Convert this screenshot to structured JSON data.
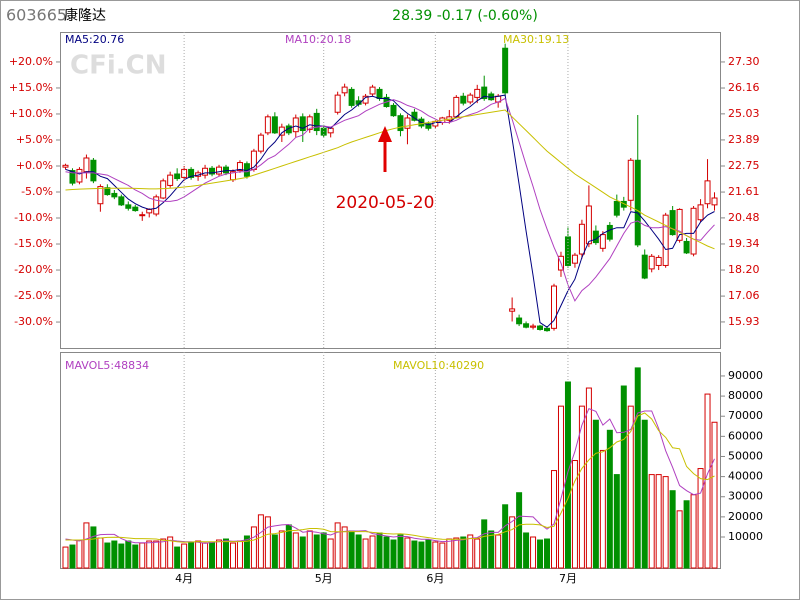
{
  "header": {
    "code": "603665",
    "name": "康隆达",
    "quote": "28.39 -0.17 (-0.60%)"
  },
  "watermark": "CFi.CN",
  "chart_data": [
    {
      "type": "candlestick",
      "annotation": "2020-05-20",
      "up_color": "#d40000",
      "down_color": "#009000",
      "ylim": [
        14.79,
        28.61
      ],
      "yticks": [
        {
          "value": 27.3,
          "label": "+20.0%"
        },
        {
          "value": 26.1625,
          "label": "+15.0%"
        },
        {
          "value": 25.025,
          "label": "+10.0%"
        },
        {
          "value": 23.8875,
          "label": "+5.0%"
        },
        {
          "value": 22.75,
          "label": "+0.0%"
        },
        {
          "value": 21.6125,
          "label": "-5.0%"
        },
        {
          "value": 20.475,
          "label": "-10.0%"
        },
        {
          "value": 19.3375,
          "label": "-15.0%"
        },
        {
          "value": 18.2,
          "label": "-20.0%"
        },
        {
          "value": 17.0625,
          "label": "-25.0%"
        },
        {
          "value": 15.925,
          "label": "-30.0%"
        }
      ],
      "y2lim": [
        14.79,
        28.61
      ],
      "y2ticks": [
        {
          "value": 27.3,
          "label": "27.30"
        },
        26.16,
        25.03,
        23.89,
        22.75,
        21.61,
        20.48,
        19.34,
        {
          "value": 18.2,
          "label": "18.20"
        },
        17.06,
        15.93
      ],
      "open": [
        22.7,
        22.55,
        22.05,
        22.5,
        23.0,
        21.1,
        21.8,
        21.55,
        21.4,
        21.05,
        20.95,
        20.6,
        20.7,
        20.65,
        21.35,
        21.9,
        22.4,
        22.25,
        22.6,
        22.3,
        22.35,
        22.65,
        22.4,
        22.7,
        22.15,
        22.55,
        22.85,
        22.6,
        23.4,
        24.2,
        24.9,
        24.1,
        24.5,
        24.25,
        24.9,
        24.35,
        25.05,
        24.4,
        24.2,
        25.1,
        25.95,
        26.1,
        25.6,
        25.5,
        25.9,
        26.1,
        25.75,
        25.4,
        24.95,
        24.4,
        25.1,
        24.8,
        24.6,
        24.5,
        24.65,
        24.75,
        24.9,
        25.8,
        25.55,
        25.75,
        26.2,
        25.9,
        25.55,
        27.9,
        16.4,
        16.1,
        15.85,
        15.7,
        15.75,
        15.65,
        15.65,
        18.2,
        19.65,
        18.5,
        18.9,
        19.35,
        19.9,
        19.15,
        20.15,
        21.2,
        21.2,
        21.25,
        23.0,
        18.85,
        18.25,
        18.4,
        18.4,
        20.8,
        19.5,
        19.45,
        18.9,
        20.4,
        21.1,
        21.05
      ],
      "high": [
        22.85,
        22.65,
        22.7,
        23.25,
        23.1,
        21.95,
        21.95,
        21.7,
        21.5,
        21.2,
        21.05,
        20.75,
        20.9,
        21.5,
        22.2,
        22.5,
        22.65,
        22.75,
        22.7,
        22.55,
        22.8,
        22.75,
        22.8,
        22.8,
        22.6,
        23.0,
        22.95,
        23.5,
        24.2,
        25.0,
        25.1,
        24.6,
        24.6,
        25.0,
        25.05,
        25.0,
        25.25,
        24.55,
        24.45,
        26.0,
        26.35,
        26.2,
        25.8,
        25.9,
        26.3,
        26.2,
        25.9,
        25.5,
        25.05,
        25.0,
        25.25,
        24.9,
        24.7,
        24.75,
        24.9,
        25.2,
        25.85,
        25.95,
        25.95,
        26.3,
        26.7,
        26.0,
        25.9,
        28.1,
        17.0,
        16.25,
        15.95,
        15.85,
        15.8,
        15.75,
        17.6,
        19.0,
        20.1,
        18.95,
        20.4,
        21.9,
        20.15,
        19.9,
        20.3,
        21.5,
        21.4,
        23.1,
        24.98,
        19.1,
        18.9,
        18.85,
        20.7,
        21.0,
        20.9,
        19.6,
        21.0,
        21.3,
        23.05,
        21.6
      ],
      "low": [
        22.6,
        21.9,
        21.95,
        22.2,
        22.0,
        20.75,
        21.45,
        21.3,
        21.0,
        20.8,
        20.75,
        20.35,
        20.5,
        20.55,
        21.3,
        21.8,
        22.1,
        22.1,
        22.15,
        22.1,
        22.2,
        22.3,
        22.3,
        22.35,
        22.05,
        22.45,
        22.2,
        22.5,
        23.3,
        24.1,
        24.15,
        23.8,
        24.1,
        24.0,
        23.8,
        24.2,
        24.1,
        24.0,
        24.0,
        25.0,
        25.8,
        25.3,
        25.35,
        25.4,
        25.8,
        25.6,
        25.3,
        24.9,
        24.05,
        23.7,
        24.7,
        24.4,
        24.3,
        24.4,
        24.55,
        24.6,
        24.85,
        25.4,
        25.45,
        25.5,
        25.6,
        25.6,
        25.3,
        25.8,
        15.95,
        15.75,
        15.65,
        15.6,
        15.55,
        15.5,
        15.55,
        17.9,
        18.3,
        18.3,
        18.7,
        19.2,
        19.3,
        19.0,
        19.45,
        20.5,
        20.8,
        20.8,
        19.2,
        17.8,
        18.1,
        18.2,
        18.3,
        19.7,
        19.4,
        18.9,
        18.8,
        20.3,
        20.9,
        20.8
      ],
      "close": [
        22.78,
        22.0,
        22.6,
        23.1,
        22.1,
        21.85,
        21.5,
        21.4,
        21.05,
        20.9,
        20.8,
        20.62,
        20.85,
        21.4,
        22.1,
        22.35,
        22.2,
        22.6,
        22.25,
        22.45,
        22.65,
        22.4,
        22.7,
        22.45,
        22.5,
        22.9,
        22.3,
        23.4,
        24.1,
        24.9,
        24.2,
        24.45,
        24.2,
        24.85,
        24.3,
        24.9,
        24.3,
        24.1,
        24.4,
        25.85,
        26.2,
        25.4,
        25.45,
        25.8,
        26.2,
        25.7,
        25.35,
        24.95,
        24.3,
        24.85,
        24.75,
        24.5,
        24.4,
        24.7,
        24.85,
        24.9,
        25.75,
        25.5,
        25.85,
        26.1,
        25.7,
        25.65,
        25.8,
        25.95,
        16.5,
        15.85,
        15.7,
        15.75,
        15.6,
        15.55,
        17.5,
        18.8,
        18.4,
        18.85,
        20.2,
        21.0,
        19.4,
        19.75,
        19.55,
        20.6,
        20.95,
        23.0,
        19.3,
        17.85,
        18.8,
        18.75,
        20.6,
        19.75,
        20.85,
        18.95,
        20.9,
        21.05,
        22.1,
        21.35
      ],
      "lines": [
        {
          "name": "MA5:20.76",
          "color": "#000080",
          "values": [
            22.6,
            22.5,
            22.4,
            22.5,
            22.5,
            22.3,
            22.2,
            21.9,
            21.6,
            21.3,
            21.1,
            20.95,
            20.85,
            20.9,
            21.15,
            21.45,
            21.8,
            22.15,
            22.3,
            22.35,
            22.45,
            22.45,
            22.5,
            22.55,
            22.55,
            22.6,
            22.55,
            22.7,
            23.05,
            23.5,
            23.8,
            24.2,
            24.4,
            24.5,
            24.4,
            24.55,
            24.5,
            24.5,
            24.4,
            24.7,
            25.0,
            25.2,
            25.45,
            25.75,
            25.8,
            25.7,
            25.7,
            25.6,
            25.3,
            25.05,
            24.85,
            24.65,
            24.55,
            24.65,
            24.65,
            24.65,
            24.9,
            25.15,
            25.35,
            25.6,
            25.8,
            25.75,
            25.8,
            25.85,
            23.95,
            21.95,
            19.9,
            17.95,
            15.9,
            15.7,
            16.0,
            16.65,
            17.3,
            17.8,
            18.75,
            19.45,
            19.55,
            19.8,
            19.95,
            20.05,
            20.05,
            20.75,
            20.7,
            20.35,
            19.95,
            19.55,
            19.1,
            19.15,
            19.75,
            19.8,
            19.8,
            20.3,
            20.6,
            20.76
          ]
        },
        {
          "name": "MA10:20.18",
          "color": "#b040c0",
          "values": [
            22.5,
            22.45,
            22.45,
            22.45,
            22.45,
            22.4,
            22.35,
            22.2,
            22.05,
            21.9,
            21.7,
            21.55,
            21.35,
            21.25,
            21.2,
            21.2,
            21.25,
            21.4,
            21.6,
            21.8,
            22.0,
            22.15,
            22.3,
            22.4,
            22.45,
            22.5,
            22.5,
            22.6,
            22.8,
            23.05,
            23.2,
            23.45,
            23.7,
            24.0,
            24.1,
            24.4,
            24.45,
            24.5,
            24.45,
            24.6,
            24.75,
            24.85,
            24.95,
            25.15,
            25.3,
            25.45,
            25.55,
            25.65,
            25.55,
            25.4,
            25.3,
            25.15,
            24.95,
            24.8,
            24.65,
            24.65,
            24.75,
            24.9,
            25.0,
            25.1,
            25.25,
            25.45,
            25.55,
            25.7,
            24.8,
            23.8,
            22.8,
            21.85,
            20.85,
            20.0,
            19.2,
            18.5,
            17.55,
            16.85,
            17.3,
            17.55,
            17.9,
            18.3,
            18.7,
            19.25,
            19.8,
            20.25,
            20.35,
            20.15,
            20.05,
            20.05,
            20.1,
            20.0,
            19.9,
            19.7,
            19.55,
            19.5,
            19.85,
            20.18
          ]
        },
        {
          "name": "MA30:19.13",
          "color": "#c8c000",
          "values": [
            21.7,
            21.72,
            21.74,
            21.75,
            21.76,
            21.77,
            21.78,
            21.78,
            21.78,
            21.78,
            21.77,
            21.76,
            21.75,
            21.75,
            21.76,
            21.78,
            21.8,
            21.83,
            21.86,
            21.9,
            21.95,
            22.0,
            22.05,
            22.1,
            22.15,
            22.2,
            22.25,
            22.35,
            22.45,
            22.55,
            22.65,
            22.75,
            22.85,
            22.95,
            23.05,
            23.15,
            23.25,
            23.35,
            23.45,
            23.55,
            23.68,
            23.8,
            23.9,
            24.0,
            24.1,
            24.2,
            24.3,
            24.38,
            24.45,
            24.5,
            24.55,
            24.6,
            24.65,
            24.7,
            24.75,
            24.8,
            24.85,
            24.9,
            24.95,
            25.0,
            25.05,
            25.1,
            25.15,
            25.2,
            24.9,
            24.6,
            24.3,
            24.0,
            23.7,
            23.4,
            23.15,
            22.9,
            22.65,
            22.4,
            22.2,
            22.0,
            21.8,
            21.6,
            21.4,
            21.25,
            21.1,
            20.95,
            20.8,
            20.6,
            20.45,
            20.3,
            20.15,
            20.0,
            19.85,
            19.7,
            19.55,
            19.4,
            19.25,
            19.13
          ]
        }
      ]
    },
    {
      "type": "bar",
      "ylim": [
        -5400,
        101900
      ],
      "yticks": [
        90000,
        80000,
        70000,
        60000,
        50000,
        40000,
        30000,
        20000,
        10000
      ],
      "categories": [
        null,
        null,
        null,
        null,
        null,
        null,
        null,
        null,
        null,
        null,
        null,
        null,
        null,
        null,
        null,
        null,
        null,
        "4月",
        null,
        null,
        null,
        null,
        null,
        null,
        null,
        null,
        null,
        null,
        null,
        null,
        null,
        null,
        null,
        null,
        null,
        null,
        null,
        "5月",
        null,
        null,
        null,
        null,
        null,
        null,
        null,
        null,
        null,
        null,
        null,
        null,
        null,
        null,
        null,
        "6月",
        null,
        null,
        null,
        null,
        null,
        null,
        null,
        null,
        null,
        null,
        null,
        null,
        null,
        null,
        null,
        null,
        null,
        null,
        "7月",
        null,
        null,
        null,
        null,
        null,
        null,
        null,
        null,
        null,
        null,
        null,
        null,
        null,
        null,
        null,
        null,
        null,
        null,
        null,
        null,
        null
      ],
      "values": [
        5000,
        6000,
        8500,
        17000,
        15000,
        9500,
        7000,
        8000,
        6500,
        8000,
        6000,
        7000,
        8000,
        8000,
        9000,
        10000,
        5000,
        6500,
        7500,
        8000,
        7000,
        7500,
        8500,
        9000,
        7000,
        8000,
        10500,
        15000,
        21000,
        20000,
        11000,
        13000,
        16000,
        12000,
        10000,
        13000,
        11000,
        12000,
        9000,
        17000,
        15000,
        13000,
        11000,
        9000,
        10500,
        12000,
        10000,
        8500,
        11000,
        9500,
        8000,
        7500,
        8500,
        7500,
        7000,
        9000,
        9500,
        10000,
        11000,
        9000,
        18500,
        13000,
        11000,
        26000,
        20000,
        32000,
        12000,
        10000,
        8500,
        9000,
        43000,
        75000,
        87000,
        48000,
        75000,
        84000,
        68000,
        53000,
        63000,
        41000,
        85000,
        75000,
        94000,
        68000,
        41000,
        41000,
        40000,
        33000,
        23000,
        28000,
        31000,
        44000,
        81000,
        67000
      ],
      "lines": [
        {
          "name": "MAVOL5:48834",
          "color": "#b040c0",
          "values": [
            9000,
            8500,
            8000,
            9000,
            10300,
            11200,
            11300,
            11300,
            9200,
            7800,
            7100,
            7100,
            7100,
            7400,
            7600,
            8400,
            8000,
            7700,
            7600,
            7400,
            6800,
            7300,
            7700,
            8100,
            7900,
            8000,
            8600,
            9900,
            12300,
            14900,
            15500,
            16000,
            16200,
            14400,
            12400,
            12800,
            12400,
            11600,
            11000,
            12400,
            12800,
            13000,
            13000,
            13200,
            11700,
            11100,
            10500,
            10000,
            10400,
            10200,
            9400,
            8900,
            8900,
            8200,
            7700,
            7900,
            8300,
            8600,
            9300,
            9700,
            11600,
            12300,
            12300,
            15500,
            17700,
            20400,
            20200,
            20000,
            16500,
            13900,
            16500,
            29100,
            42500,
            52400,
            65600,
            73800,
            72400,
            65600,
            68600,
            61800,
            62000,
            63400,
            71600,
            72600,
            72600,
            63800,
            52800,
            44600,
            35600,
            33000,
            31000,
            31800,
            41400,
            48834
          ]
        },
        {
          "name": "MAVOL10:40290",
          "color": "#c8c000",
          "values": [
            8500,
            8500,
            8500,
            8700,
            9000,
            9500,
            9800,
            9900,
            9800,
            9500,
            9200,
            9200,
            9100,
            9000,
            8400,
            8100,
            7600,
            7400,
            7500,
            7700,
            7600,
            7600,
            7600,
            7700,
            7700,
            7700,
            7900,
            8500,
            9900,
            11400,
            11700,
            12300,
            13100,
            13300,
            13700,
            14200,
            14200,
            13800,
            12700,
            12600,
            12600,
            12700,
            12700,
            12700,
            12300,
            12000,
            11700,
            11500,
            11600,
            11300,
            10800,
            10200,
            9700,
            9200,
            8900,
            8800,
            8900,
            8900,
            9200,
            9300,
            10300,
            10800,
            11300,
            12600,
            13700,
            16000,
            16300,
            16300,
            16000,
            14700,
            15300,
            21900,
            29200,
            37800,
            44100,
            48300,
            51600,
            52300,
            54300,
            57200,
            58500,
            62400,
            70100,
            71600,
            68600,
            62800,
            59500,
            54300,
            53800,
            45000,
            41500,
            39000,
            38500,
            40290
          ]
        }
      ]
    }
  ]
}
